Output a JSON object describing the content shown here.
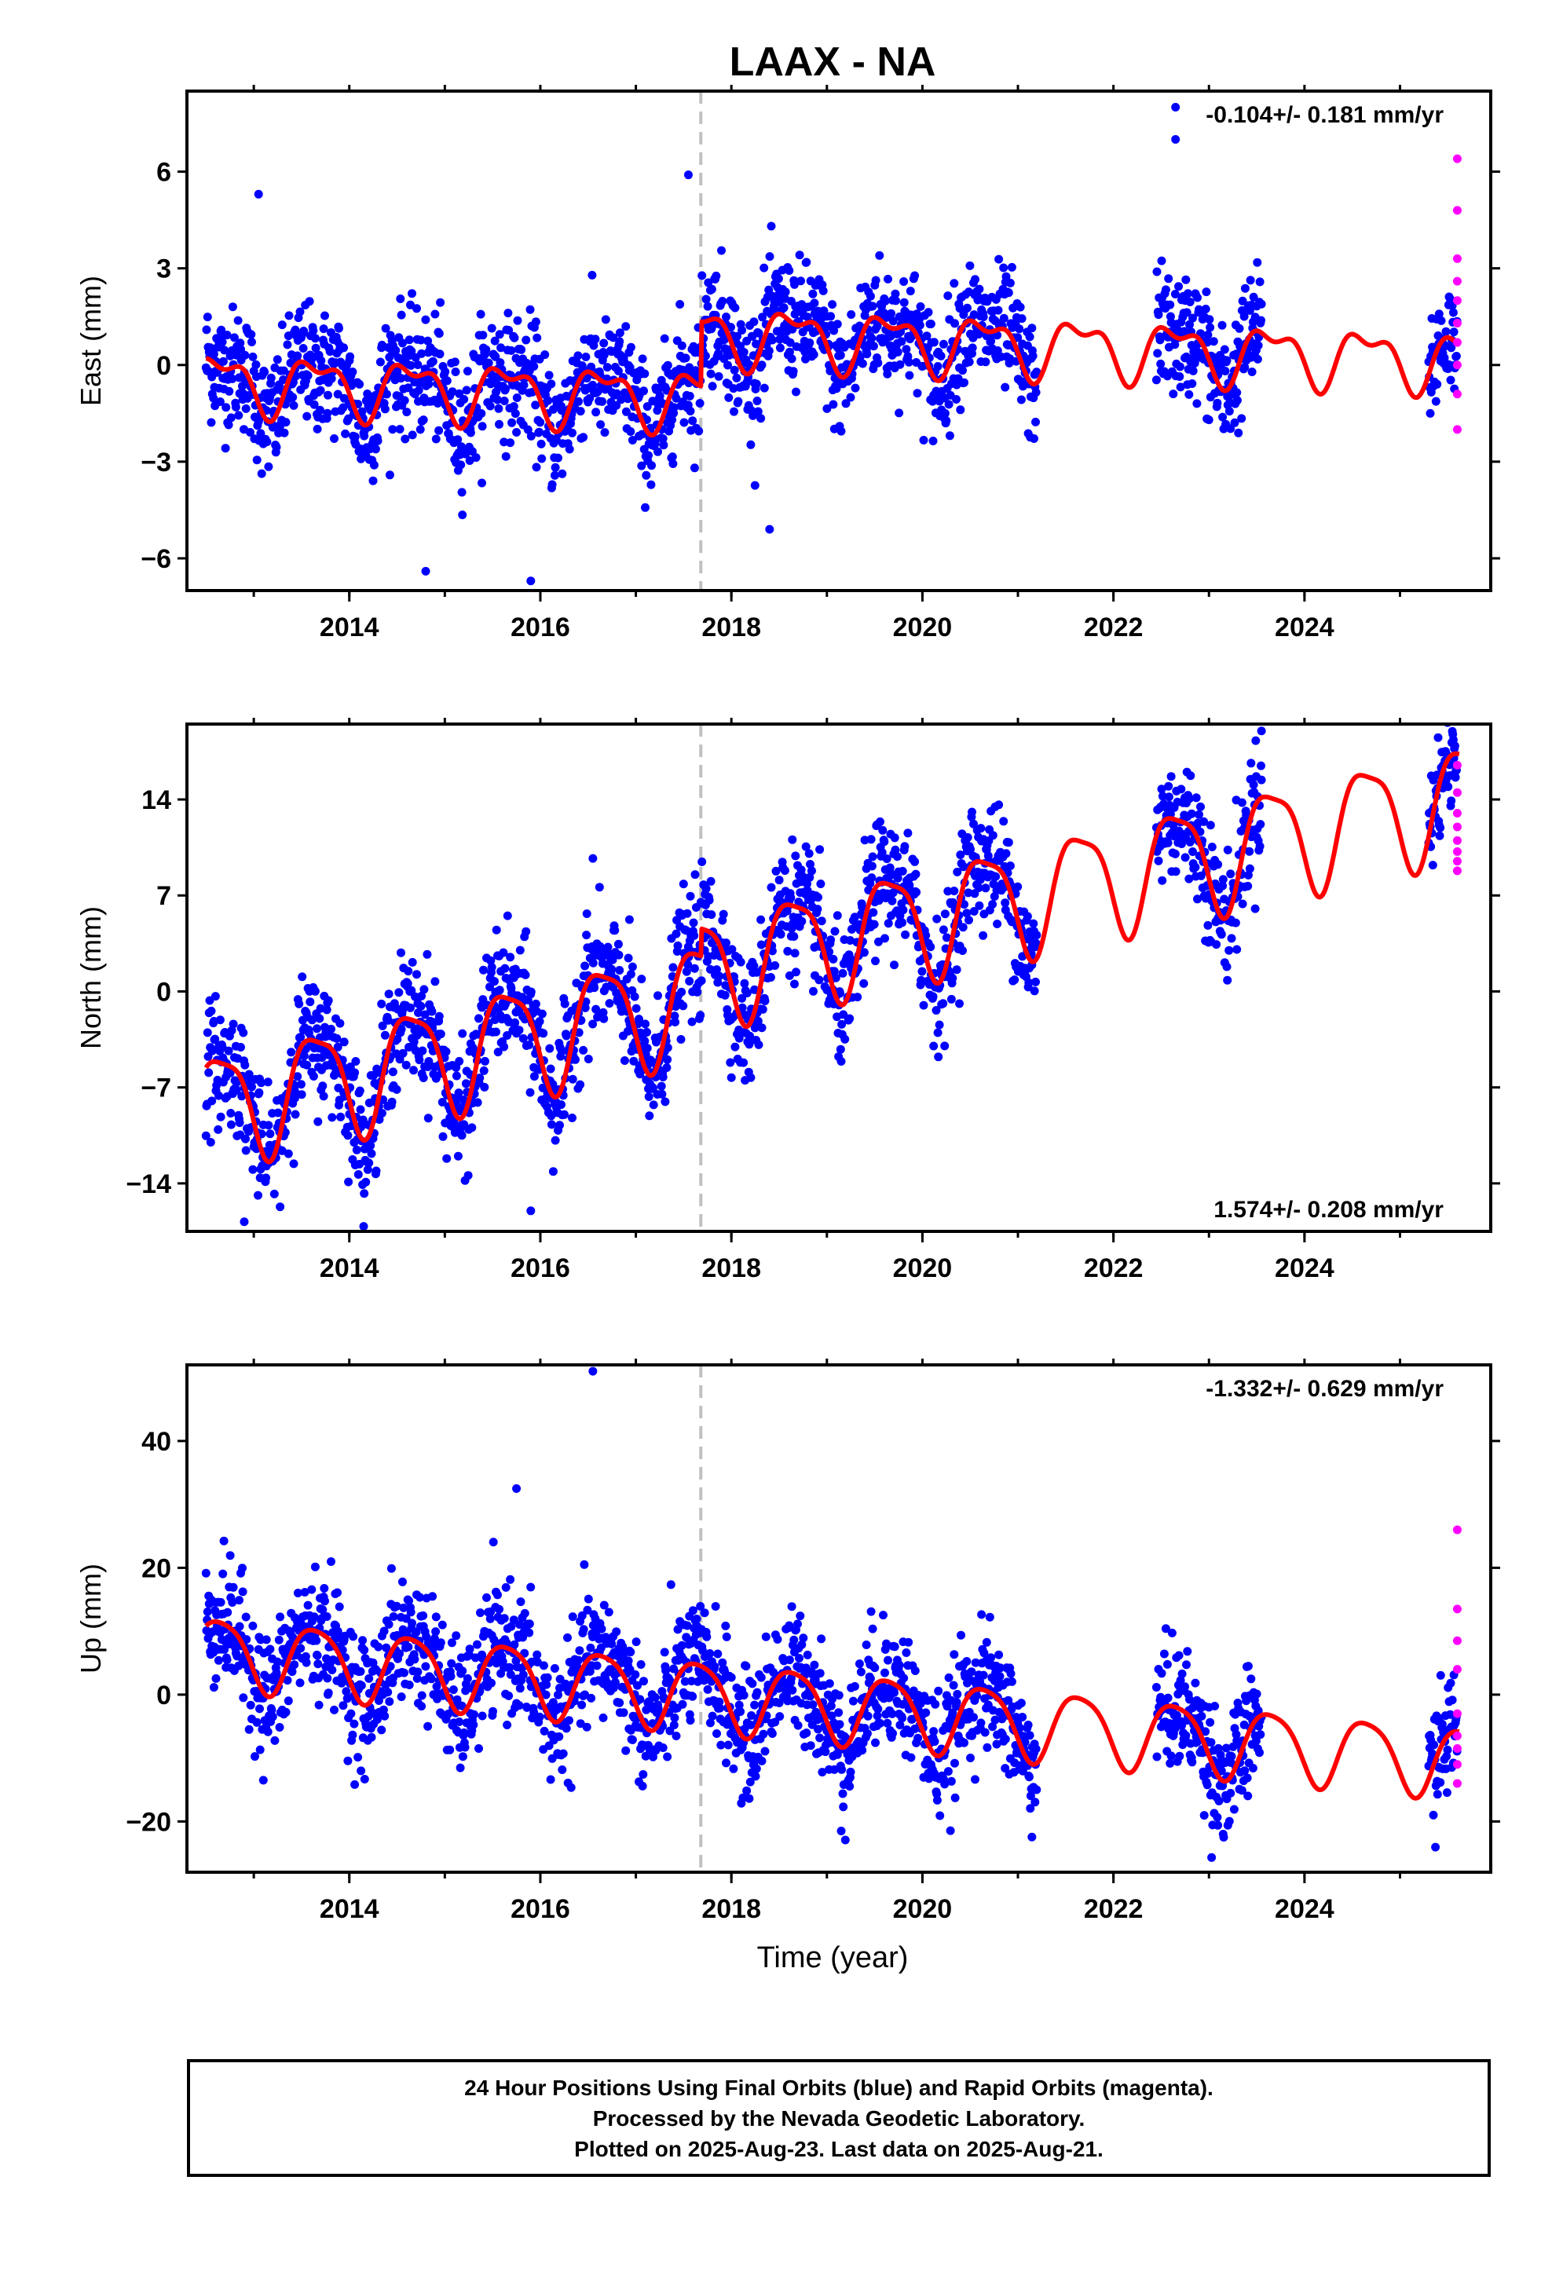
{
  "title": "LAAX - NA",
  "xlabel": "Time (year)",
  "footer": {
    "line1": "24 Hour Positions Using Final Orbits (blue) and Rapid Orbits (magenta).",
    "line2": "Processed by the Nevada Geodetic Laboratory.",
    "line3": "Plotted on 2025-Aug-23. Last data on 2025-Aug-21."
  },
  "colors": {
    "final": "#0000ff",
    "rapid": "#ff00ff",
    "model": "#ff0000",
    "break_line": "#c0c0c0"
  },
  "chart_data": [
    {
      "type": "scatter",
      "component": "East",
      "ylabel": "East (mm)",
      "xlim": [
        2012.3,
        2025.95
      ],
      "ylim": [
        -7.0,
        8.5
      ],
      "yticks": [
        -6,
        -3,
        0,
        3,
        6
      ],
      "xticks": [
        2014,
        2016,
        2018,
        2020,
        2022,
        2024
      ],
      "velocity_label": "-0.104+/- 0.181 mm/yr",
      "velocity_position": "top-right",
      "equipment_change": 2017.68,
      "series": [
        {
          "kind": "final",
          "segments": [
            [
              2012.5,
              2021.2
            ],
            [
              2022.45,
              2023.55
            ],
            [
              2025.3,
              2025.6
            ]
          ]
        },
        {
          "kind": "rapid",
          "x": [
            2025.6,
            2025.6,
            2025.6,
            2025.6,
            2025.6,
            2025.6,
            2025.6,
            2025.6,
            2025.6,
            2025.6
          ],
          "y": [
            6.4,
            4.8,
            3.3,
            2.6,
            2.0,
            1.3,
            0.7,
            0.0,
            -0.9,
            -2.0
          ]
        },
        {
          "kind": "model",
          "offset": -0.5,
          "trend": -0.104,
          "annual": 0.8,
          "semiannual": 0.4,
          "step": 2.0
        }
      ],
      "outliers": [
        {
          "x": 2022.65,
          "y": 8.0
        },
        {
          "x": 2022.65,
          "y": 7.0
        },
        {
          "x": 2013.05,
          "y": 5.3
        },
        {
          "x": 2017.55,
          "y": 5.9
        },
        {
          "x": 2014.8,
          "y": -6.4
        },
        {
          "x": 2015.9,
          "y": -6.7
        },
        {
          "x": 2018.4,
          "y": -5.1
        }
      ]
    },
    {
      "type": "scatter",
      "component": "North",
      "ylabel": "North (mm)",
      "xlim": [
        2012.3,
        2025.95
      ],
      "ylim": [
        -17.5,
        19.5
      ],
      "yticks": [
        -14,
        -7,
        0,
        7,
        14
      ],
      "xticks": [
        2014,
        2016,
        2018,
        2020,
        2022,
        2024
      ],
      "velocity_label": "1.574+/- 0.208 mm/yr",
      "velocity_position": "bottom-right",
      "equipment_change": 2017.68,
      "series": [
        {
          "kind": "final",
          "segments": [
            [
              2012.5,
              2021.2
            ],
            [
              2022.45,
              2023.55
            ],
            [
              2025.3,
              2025.6
            ]
          ]
        },
        {
          "kind": "rapid",
          "x": [
            2025.6,
            2025.6,
            2025.6,
            2025.6,
            2025.6,
            2025.6,
            2025.6,
            2025.6
          ],
          "y": [
            16.5,
            14.5,
            13.0,
            12.0,
            11.0,
            10.2,
            9.5,
            8.8
          ]
        },
        {
          "kind": "model",
          "offset": -8.5,
          "trend": 1.574,
          "annual": 4.0,
          "semiannual": 1.0,
          "step": 2.0
        }
      ],
      "outliers": [
        {
          "x": 2023.55,
          "y": 19.0
        },
        {
          "x": 2016.55,
          "y": 9.7
        },
        {
          "x": 2015.9,
          "y": -16.0
        },
        {
          "x": 2012.9,
          "y": -16.8
        }
      ]
    },
    {
      "type": "scatter",
      "component": "Up",
      "ylabel": "Up (mm)",
      "xlim": [
        2012.3,
        2025.95
      ],
      "ylim": [
        -28,
        52
      ],
      "yticks": [
        -20,
        0,
        20,
        40
      ],
      "xticks": [
        2014,
        2016,
        2018,
        2020,
        2022,
        2024
      ],
      "velocity_label": "-1.332+/- 0.629 mm/yr",
      "velocity_position": "top-right",
      "equipment_change": 2017.68,
      "series": [
        {
          "kind": "final",
          "segments": [
            [
              2012.5,
              2021.2
            ],
            [
              2022.45,
              2023.55
            ],
            [
              2025.3,
              2025.6
            ]
          ]
        },
        {
          "kind": "rapid",
          "x": [
            2025.6,
            2025.6,
            2025.6,
            2025.6,
            2025.6,
            2025.6,
            2025.6,
            2025.6,
            2025.6
          ],
          "y": [
            26.0,
            13.5,
            8.5,
            4.0,
            -3.0,
            -6.5,
            -8.5,
            -11.0,
            -14.0
          ]
        },
        {
          "kind": "model",
          "offset": 7.0,
          "trend": -1.332,
          "annual": 5.5,
          "semiannual": 1.0,
          "step": 0.0
        }
      ],
      "outliers": [
        {
          "x": 2016.55,
          "y": 51.0
        },
        {
          "x": 2015.75,
          "y": 32.5
        },
        {
          "x": 2013.1,
          "y": -13.5
        },
        {
          "x": 2019.15,
          "y": -21.5
        }
      ]
    }
  ]
}
